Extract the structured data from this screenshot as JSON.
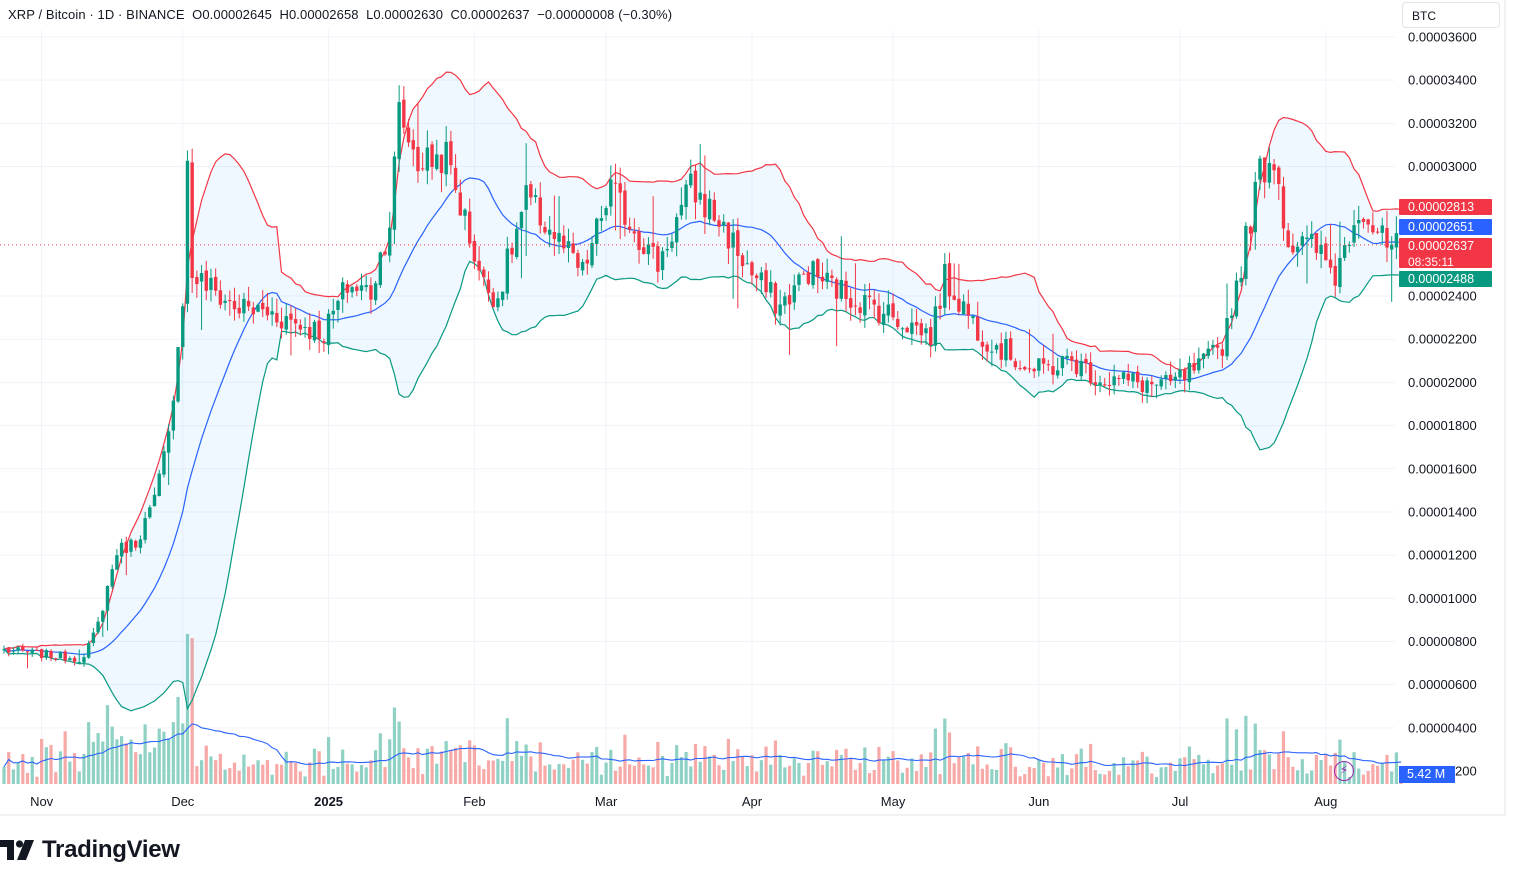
{
  "header": {
    "symbol": "XRP / Bitcoin · 1D · BINANCE",
    "open": "O0.00002645",
    "high": "H0.00002658",
    "low": "L0.00002630",
    "close": "C0.00002637",
    "change": "−0.00000008 (−0.30%)"
  },
  "currency_button": "BTC",
  "price_labels": {
    "upper_band": "0.00002813",
    "middle_band": "0.00002651",
    "last_price": "0.00002637",
    "countdown": "08:35:11",
    "lower_band": "0.00002488"
  },
  "volume_label": "5.42 M",
  "brand": "TradingView",
  "colors": {
    "up": "#089981",
    "down": "#f23645",
    "upper_band": "#f23645",
    "middle_band": "#2962ff",
    "lower_band": "#089981",
    "band_fill": "#2196f3",
    "vol_up": "#8fd1c4",
    "vol_down": "#f7a9a7",
    "vol_ma": "#2962ff"
  },
  "chart_data": {
    "type": "candlestick",
    "title": "XRP / Bitcoin · 1D · BINANCE",
    "indicators": [
      "Bollinger Bands (upper, basis, lower)",
      "Volume",
      "Volume MA"
    ],
    "x_tick_labels": [
      "Nov",
      "Dec",
      "2025",
      "Feb",
      "Mar",
      "Apr",
      "May",
      "Jun",
      "Jul",
      "Aug"
    ],
    "y_tick_labels": [
      "0.00003600",
      "0.00003400",
      "0.00003200",
      "0.00003000",
      "0.00002400",
      "0.00002200",
      "0.00002000",
      "0.00001800",
      "0.00001600",
      "0.00001400",
      "0.00001200",
      "0.00001000",
      "0.00000800",
      "0.00000600",
      "0.00000400",
      "0.00000200"
    ],
    "y_tick_values": [
      3.6e-05,
      3.4e-05,
      3.2e-05,
      3e-05,
      2.4e-05,
      2.2e-05,
      2e-05,
      1.8e-05,
      1.6e-05,
      1.4e-05,
      1.2e-05,
      1e-05,
      8e-06,
      6e-06,
      4e-06,
      2e-06
    ],
    "ylim": [
      1.5e-06,
      3.68e-05
    ],
    "last_price": 2.637e-05,
    "close_path_anchors": [
      {
        "date": "2024-10-24",
        "close": 7.6e-06
      },
      {
        "date": "2024-11-10",
        "close": 7.2e-06
      },
      {
        "date": "2024-11-13",
        "close": 8.8e-06
      },
      {
        "date": "2024-11-17",
        "close": 1.22e-05
      },
      {
        "date": "2024-11-21",
        "close": 1.26e-05
      },
      {
        "date": "2024-11-25",
        "close": 1.45e-05
      },
      {
        "date": "2024-11-28",
        "close": 1.75e-05
      },
      {
        "date": "2024-12-01",
        "close": 2.4e-05
      },
      {
        "date": "2024-12-02",
        "close": 3e-05
      },
      {
        "date": "2024-12-03",
        "close": 2.5e-05
      },
      {
        "date": "2024-12-06",
        "close": 2.45e-05
      },
      {
        "date": "2024-12-12",
        "close": 2.35e-05
      },
      {
        "date": "2024-12-20",
        "close": 2.32e-05
      },
      {
        "date": "2024-12-31",
        "close": 2.23e-05
      },
      {
        "date": "2025-01-05",
        "close": 2.45e-05
      },
      {
        "date": "2025-01-10",
        "close": 2.42e-05
      },
      {
        "date": "2025-01-14",
        "close": 2.75e-05
      },
      {
        "date": "2025-01-16",
        "close": 3.25e-05
      },
      {
        "date": "2025-01-20",
        "close": 3.02e-05
      },
      {
        "date": "2025-01-26",
        "close": 3.05e-05
      },
      {
        "date": "2025-01-30",
        "close": 2.75e-05
      },
      {
        "date": "2025-02-03",
        "close": 2.45e-05
      },
      {
        "date": "2025-02-06",
        "close": 2.4e-05
      },
      {
        "date": "2025-02-12",
        "close": 2.85e-05
      },
      {
        "date": "2025-02-18",
        "close": 2.68e-05
      },
      {
        "date": "2025-02-24",
        "close": 2.5e-05
      },
      {
        "date": "2025-03-02",
        "close": 2.9e-05
      },
      {
        "date": "2025-03-05",
        "close": 2.78e-05
      },
      {
        "date": "2025-03-12",
        "close": 2.55e-05
      },
      {
        "date": "2025-03-19",
        "close": 2.9e-05
      },
      {
        "date": "2025-03-25",
        "close": 2.75e-05
      },
      {
        "date": "2025-04-01",
        "close": 2.5e-05
      },
      {
        "date": "2025-04-07",
        "close": 2.35e-05
      },
      {
        "date": "2025-04-13",
        "close": 2.52e-05
      },
      {
        "date": "2025-04-20",
        "close": 2.42e-05
      },
      {
        "date": "2025-04-30",
        "close": 2.32e-05
      },
      {
        "date": "2025-05-09",
        "close": 2.22e-05
      },
      {
        "date": "2025-05-12",
        "close": 2.48e-05
      },
      {
        "date": "2025-05-20",
        "close": 2.22e-05
      },
      {
        "date": "2025-05-31",
        "close": 2.05e-05
      },
      {
        "date": "2025-06-08",
        "close": 2.1e-05
      },
      {
        "date": "2025-06-14",
        "close": 2.02e-05
      },
      {
        "date": "2025-06-22",
        "close": 2e-05
      },
      {
        "date": "2025-06-28",
        "close": 1.98e-05
      },
      {
        "date": "2025-07-06",
        "close": 2.08e-05
      },
      {
        "date": "2025-07-10",
        "close": 2.18e-05
      },
      {
        "date": "2025-07-14",
        "close": 2.55e-05
      },
      {
        "date": "2025-07-18",
        "close": 2.98e-05
      },
      {
        "date": "2025-07-21",
        "close": 3.05e-05
      },
      {
        "date": "2025-07-24",
        "close": 2.65e-05
      },
      {
        "date": "2025-07-30",
        "close": 2.62e-05
      },
      {
        "date": "2025-08-03",
        "close": 2.5e-05
      },
      {
        "date": "2025-08-08",
        "close": 2.83e-05
      },
      {
        "date": "2025-08-14",
        "close": 2.62e-05
      },
      {
        "date": "2025-08-17",
        "close": 2.637e-05
      }
    ],
    "bands_latest": {
      "upper": 2.813e-05,
      "basis": 2.651e-05,
      "lower": 2.488e-05
    },
    "volume_latest": "5.42 M",
    "grid": true
  }
}
